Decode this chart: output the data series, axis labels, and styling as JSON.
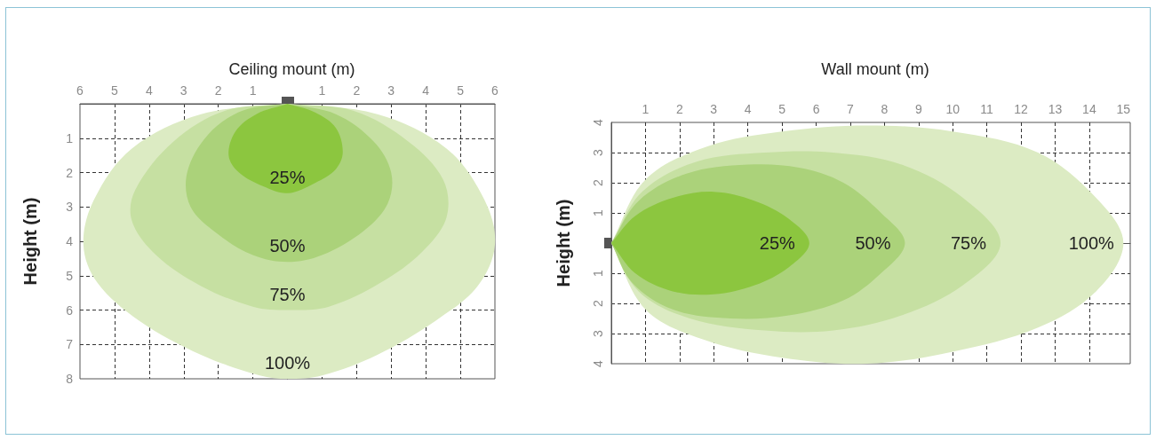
{
  "chart_data": [
    {
      "type": "area",
      "title": "Ceiling mount (m)",
      "ylabel": "Height (m)",
      "xlim": [
        -6,
        6
      ],
      "xticks": [
        {
          "value": -6,
          "label": "6"
        },
        {
          "value": -5,
          "label": "5"
        },
        {
          "value": -4,
          "label": "4"
        },
        {
          "value": -3,
          "label": "3"
        },
        {
          "value": -2,
          "label": "2"
        },
        {
          "value": -1,
          "label": "1"
        },
        {
          "value": 0,
          "label": null
        },
        1,
        2,
        3,
        4,
        5,
        6
      ],
      "ylim": [
        8,
        0
      ],
      "yticks": [
        {
          "value": 0,
          "label": null
        },
        1,
        2,
        3,
        4,
        5,
        6,
        7,
        8
      ],
      "series": [
        {
          "name": "100%",
          "color": "#dcebc3",
          "x": [
            0,
            -2.5,
            -4.5,
            -5.6,
            -5.9,
            -5.5,
            -4.3,
            -2.5,
            -0.8,
            0,
            1,
            2.6,
            4.3,
            5.5,
            6,
            5.7,
            4.6,
            2.6,
            0
          ],
          "values": [
            0,
            0.3,
            1.3,
            2.8,
            4.1,
            5.2,
            6.3,
            7.3,
            7.9,
            8,
            7.9,
            7.3,
            6.3,
            5.3,
            4.1,
            2.8,
            1.3,
            0.3,
            0
          ]
        },
        {
          "name": "75%",
          "color": "#c6e0a2",
          "x": [
            0,
            -1.8,
            -3.3,
            -4.4,
            -4.5,
            -3.8,
            -2.5,
            -1,
            0,
            1.2,
            2.7,
            3.9,
            4.6,
            4.5,
            3.5,
            1.9,
            0
          ],
          "values": [
            0,
            0.2,
            1.1,
            2.5,
            3.4,
            4.4,
            5.3,
            5.9,
            6,
            5.9,
            5.2,
            4.3,
            3.3,
            2.2,
            1.1,
            0.2,
            0
          ]
        },
        {
          "name": "50%",
          "color": "#abd27a",
          "x": [
            0,
            -1.3,
            -2.3,
            -2.9,
            -2.8,
            -2,
            -1,
            0,
            1,
            2.2,
            2.9,
            3,
            2.5,
            1.4,
            0
          ],
          "values": [
            0,
            0.2,
            0.9,
            2,
            3,
            3.8,
            4.4,
            4.6,
            4.4,
            3.7,
            2.9,
            2,
            1.1,
            0.3,
            0
          ]
        },
        {
          "name": "25%",
          "color": "#8cc63f",
          "x": [
            0,
            -0.9,
            -1.5,
            -1.7,
            -1.4,
            -0.7,
            0,
            0.8,
            1.4,
            1.6,
            1.4,
            0.8,
            0
          ],
          "values": [
            0,
            0.3,
            0.8,
            1.5,
            2,
            2.4,
            2.6,
            2.3,
            1.9,
            1.4,
            0.7,
            0.25,
            0
          ]
        }
      ],
      "grid": true
    },
    {
      "type": "area",
      "title": "Wall mount (m)",
      "ylabel": "Height (m)",
      "xlim": [
        0,
        15.2
      ],
      "xticks": [
        {
          "value": 0,
          "label": null
        },
        1,
        2,
        3,
        4,
        5,
        6,
        7,
        8,
        9,
        10,
        11,
        12,
        13,
        14,
        15
      ],
      "ylim": [
        -4,
        4
      ],
      "yticks": [
        {
          "value": -4,
          "label": "4"
        },
        {
          "value": -3,
          "label": "3"
        },
        {
          "value": -2,
          "label": "2"
        },
        {
          "value": -1,
          "label": "1"
        },
        {
          "value": 0,
          "label": null
        },
        1,
        2,
        3,
        4
      ],
      "series": [
        {
          "name": "100%",
          "color": "#dcebc3",
          "x": [
            0,
            1,
            2.8,
            5,
            7.5,
            10,
            12.5,
            14.2,
            15,
            14.2,
            12.5,
            10,
            7.5,
            5,
            2.7,
            1,
            0
          ],
          "values": [
            0,
            2.1,
            3.2,
            3.7,
            3.9,
            3.7,
            3,
            1.5,
            0,
            -1.6,
            -2.8,
            -3.6,
            -4,
            -3.8,
            -3.2,
            -2.2,
            0
          ]
        },
        {
          "name": "75%",
          "color": "#c6e0a2",
          "x": [
            0,
            0.9,
            2.5,
            4.5,
            6.5,
            8.5,
            10.3,
            11.4,
            10.3,
            8.5,
            6.5,
            4.5,
            2.3,
            0.8,
            0
          ],
          "values": [
            0,
            1.7,
            2.7,
            3,
            3,
            2.6,
            1.5,
            0,
            -1.4,
            -2.4,
            -2.9,
            -2.9,
            -2.5,
            -1.6,
            0
          ]
        },
        {
          "name": "50%",
          "color": "#abd27a",
          "x": [
            0,
            0.8,
            2.2,
            4,
            5.5,
            6.8,
            7.9,
            8.6,
            7.9,
            6.8,
            5.2,
            3.5,
            1.8,
            0.6,
            0
          ],
          "values": [
            0,
            1.4,
            2.3,
            2.6,
            2.5,
            2,
            1,
            0,
            -1,
            -1.9,
            -2.4,
            -2.5,
            -2.2,
            -1.3,
            0
          ]
        },
        {
          "name": "25%",
          "color": "#8cc63f",
          "x": [
            0,
            0.7,
            1.8,
            3,
            4.2,
            5.2,
            5.8,
            5.2,
            4.2,
            3,
            1.8,
            0.7,
            0
          ],
          "values": [
            0,
            0.9,
            1.5,
            1.7,
            1.4,
            0.8,
            0,
            -0.8,
            -1.4,
            -1.7,
            -1.6,
            -1,
            0
          ]
        }
      ],
      "grid": true
    }
  ]
}
